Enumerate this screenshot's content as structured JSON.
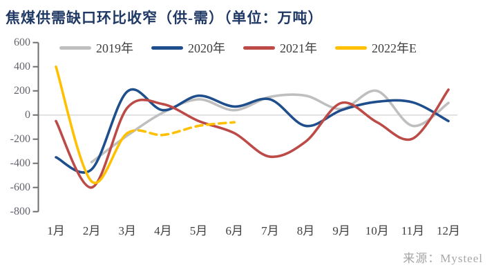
{
  "title": "焦煤供需缺口环比收窄（供-需）（单位：万吨）",
  "source": "来源：Mysteel",
  "chart_data": {
    "type": "line",
    "title": "焦煤供需缺口环比收窄（供-需）（单位：万吨）",
    "unit": "万吨",
    "categories": [
      "1月",
      "2月",
      "3月",
      "4月",
      "5月",
      "6月",
      "7月",
      "8月",
      "9月",
      "10月",
      "11月",
      "12月"
    ],
    "yticks": [
      600,
      400,
      200,
      0,
      -200,
      -400,
      -600,
      -800
    ],
    "ylim": [
      -800,
      600
    ],
    "grid": "zero-line-only",
    "legend_position": "top",
    "series": [
      {
        "name": "2019年",
        "color": "#BFBFBF",
        "dash": false,
        "values": [
          null,
          -390,
          -170,
          20,
          130,
          40,
          150,
          160,
          50,
          200,
          -90,
          100
        ]
      },
      {
        "name": "2020年",
        "color": "#1F4E8C",
        "dash": false,
        "values": [
          -350,
          -450,
          195,
          40,
          160,
          70,
          130,
          -90,
          40,
          110,
          105,
          -50
        ]
      },
      {
        "name": "2021年",
        "color": "#BC4A47",
        "dash": false,
        "values": [
          -50,
          -600,
          60,
          90,
          -50,
          -150,
          -345,
          -220,
          100,
          -60,
          -195,
          210
        ]
      },
      {
        "name": "2022年E",
        "color": "#FFC000",
        "dash": true,
        "dash_from_index": 2,
        "values": [
          400,
          -550,
          -150,
          -165,
          -90,
          -60,
          null,
          null,
          null,
          null,
          null,
          null
        ]
      }
    ],
    "colors": {
      "title": "#1F3864",
      "axis_line": "#6E6E6E",
      "zero_gridline": "#D9D9D9",
      "y_tick_text": "#63636E",
      "x_tick_text": "#3F3F3F",
      "source_text": "#A6A6A6"
    }
  }
}
